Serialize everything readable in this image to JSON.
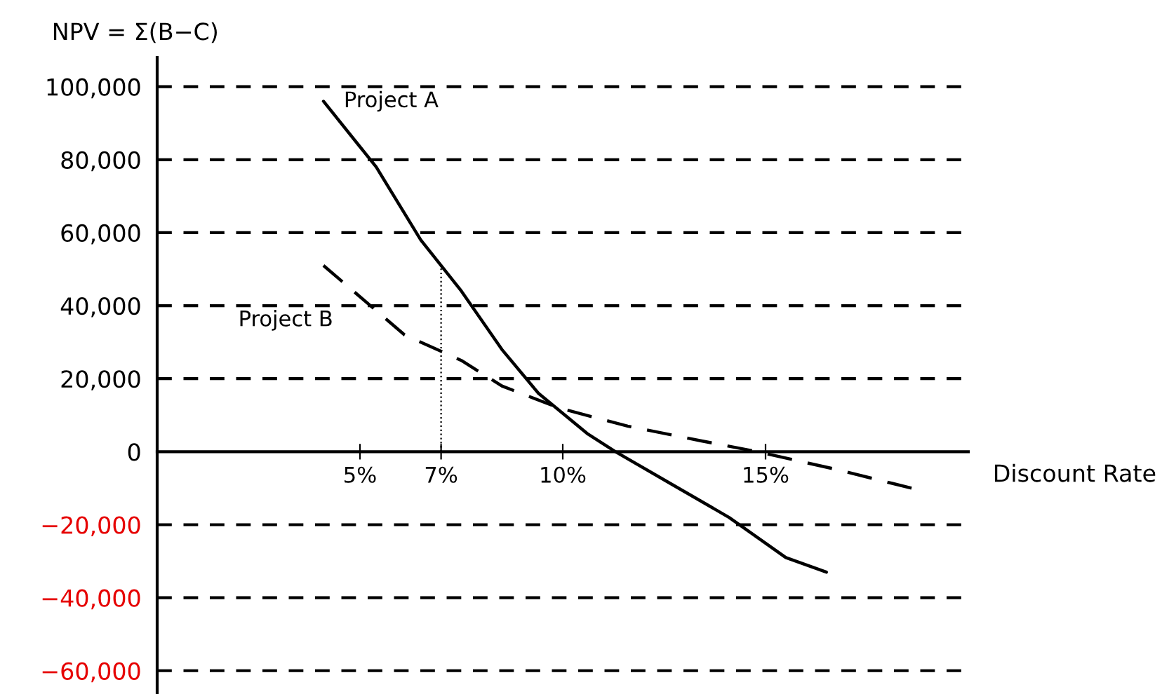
{
  "chart_data": {
    "type": "line",
    "xlabel": "Discount Rate",
    "ylabel": "NPV = Σ(B−C)",
    "xlim": [
      0,
      20
    ],
    "ylim": [
      -66000,
      108000
    ],
    "xticks": [
      {
        "value": 5,
        "label": "5%"
      },
      {
        "value": 7,
        "label": "7%"
      },
      {
        "value": 10,
        "label": "10%"
      },
      {
        "value": 15,
        "label": "15%"
      }
    ],
    "yticks": [
      {
        "value": -60000,
        "label": "−60,000"
      },
      {
        "value": -40000,
        "label": "−40,000"
      },
      {
        "value": -20000,
        "label": "−20,000"
      },
      {
        "value": 0,
        "label": "0"
      },
      {
        "value": 20000,
        "label": "20,000"
      },
      {
        "value": 40000,
        "label": "40,000"
      },
      {
        "value": 60000,
        "label": "60,000"
      },
      {
        "value": 80000,
        "label": "80,000"
      },
      {
        "value": 100000,
        "label": "100,000"
      }
    ],
    "grid": "y",
    "legend": false,
    "ref_lines": [
      {
        "axis": "x",
        "value": 7,
        "line_style": "dotted",
        "color": "#000000"
      }
    ],
    "series": [
      {
        "name": "Project A",
        "color": "#000000",
        "line_style": "solid",
        "x": [
          4.1,
          5.4,
          6.5,
          7.5,
          8.5,
          9.4,
          10.6,
          11.3,
          12.7,
          14.1,
          15.5,
          16.5
        ],
        "values": [
          96000,
          78000,
          58000,
          44000,
          28000,
          16000,
          5000,
          0,
          -9000,
          -18000,
          -29000,
          -33000
        ]
      },
      {
        "name": "Project B",
        "color": "#000000",
        "line_style": "dashed",
        "x": [
          4.1,
          6.1,
          7.5,
          8.5,
          9.9,
          11.6,
          13.4,
          14.8,
          16.8,
          18.6
        ],
        "values": [
          51000,
          32000,
          25000,
          18000,
          12000,
          7000,
          3000,
          0,
          -5000,
          -10000
        ]
      }
    ]
  }
}
